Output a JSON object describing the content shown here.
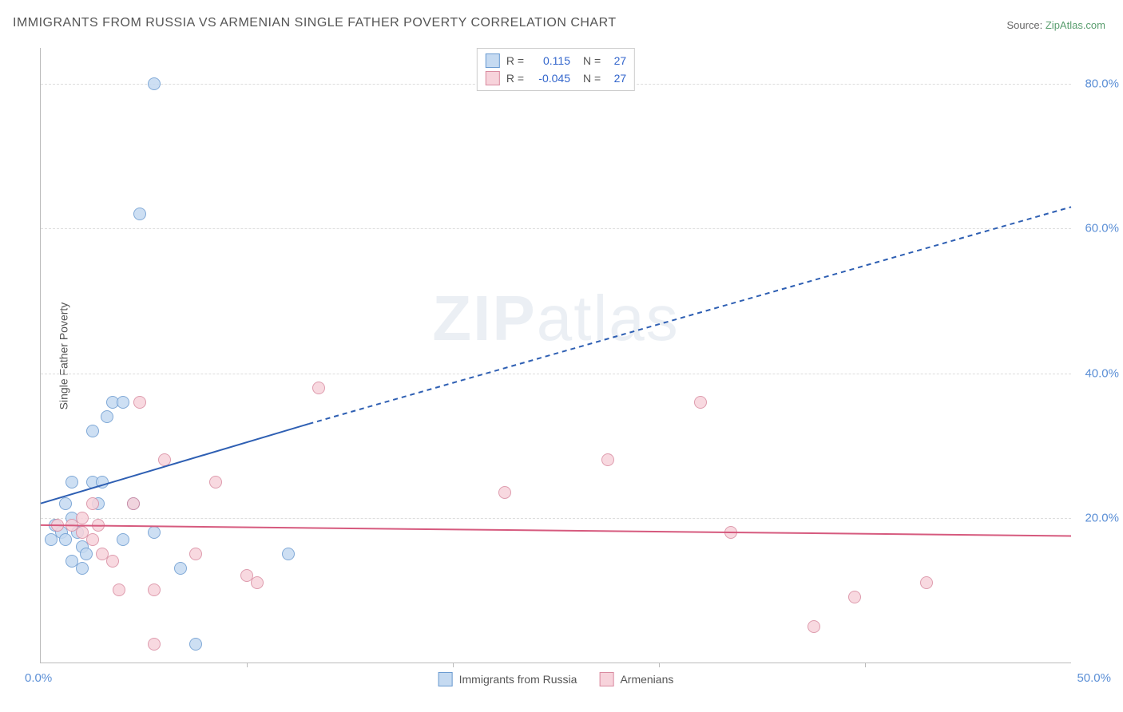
{
  "title": "IMMIGRANTS FROM RUSSIA VS ARMENIAN SINGLE FATHER POVERTY CORRELATION CHART",
  "source_prefix": "Source: ",
  "source_link": "ZipAtlas.com",
  "ylabel": "Single Father Poverty",
  "watermark": "ZIPatlas",
  "chart": {
    "type": "scatter",
    "xlim": [
      0,
      50
    ],
    "ylim": [
      0,
      85
    ],
    "x_axis_label_left": "0.0%",
    "x_axis_label_right": "50.0%",
    "y_gridlines": [
      20,
      40,
      60,
      80
    ],
    "y_tick_labels": [
      "20.0%",
      "40.0%",
      "60.0%",
      "80.0%"
    ],
    "x_ticks": [
      10,
      20,
      30,
      40
    ],
    "background_color": "#ffffff",
    "grid_color": "#dddddd",
    "axis_color": "#bbbbbb",
    "tick_label_color": "#5b8fd6",
    "marker_radius": 7,
    "series": [
      {
        "name": "Immigrants from Russia",
        "fill": "#c5daf1",
        "stroke": "#6b9bd1",
        "line_color": "#2e5fb3",
        "R": "0.115",
        "N": "27",
        "trend": {
          "x1": 0,
          "y1": 22,
          "x2": 13,
          "y2": 33,
          "dash_x2": 50,
          "dash_y2": 63
        },
        "points": [
          [
            0.5,
            17
          ],
          [
            0.7,
            19
          ],
          [
            1.0,
            18
          ],
          [
            1.2,
            17
          ],
          [
            1.2,
            22
          ],
          [
            1.5,
            20
          ],
          [
            1.5,
            14
          ],
          [
            1.8,
            18
          ],
          [
            1.5,
            25
          ],
          [
            2.0,
            16
          ],
          [
            2.2,
            15
          ],
          [
            2.5,
            25
          ],
          [
            2.8,
            22
          ],
          [
            2.5,
            32
          ],
          [
            3.0,
            25
          ],
          [
            3.2,
            34
          ],
          [
            3.5,
            36
          ],
          [
            4.0,
            36
          ],
          [
            4.0,
            17
          ],
          [
            4.5,
            22
          ],
          [
            5.5,
            18
          ],
          [
            4.8,
            62
          ],
          [
            5.5,
            80
          ],
          [
            6.8,
            13
          ],
          [
            7.5,
            2.5
          ],
          [
            12.0,
            15
          ],
          [
            2.0,
            13
          ]
        ]
      },
      {
        "name": "Armenians",
        "fill": "#f7d3db",
        "stroke": "#d98ba0",
        "line_color": "#d65a7e",
        "R": "-0.045",
        "N": "27",
        "trend": {
          "x1": 0,
          "y1": 19,
          "x2": 50,
          "y2": 17.5
        },
        "points": [
          [
            0.8,
            19
          ],
          [
            1.5,
            19
          ],
          [
            2.0,
            20
          ],
          [
            2.0,
            18
          ],
          [
            2.5,
            22
          ],
          [
            2.5,
            17
          ],
          [
            2.8,
            19
          ],
          [
            3.5,
            14
          ],
          [
            3.8,
            10
          ],
          [
            4.5,
            22
          ],
          [
            4.8,
            36
          ],
          [
            5.5,
            10
          ],
          [
            5.5,
            2.5
          ],
          [
            6.0,
            28
          ],
          [
            7.5,
            15
          ],
          [
            8.5,
            25
          ],
          [
            10.0,
            12
          ],
          [
            10.5,
            11
          ],
          [
            13.5,
            38
          ],
          [
            22.5,
            23.5
          ],
          [
            27.5,
            28
          ],
          [
            32.0,
            36
          ],
          [
            33.5,
            18
          ],
          [
            37.5,
            5
          ],
          [
            39.5,
            9
          ],
          [
            43.0,
            11
          ],
          [
            3.0,
            15
          ]
        ]
      }
    ]
  },
  "legend_top_labels": {
    "R": "R =",
    "N": "N ="
  },
  "legend_bottom": [
    {
      "label": "Immigrants from Russia",
      "fill": "#c5daf1",
      "stroke": "#6b9bd1"
    },
    {
      "label": "Armenians",
      "fill": "#f7d3db",
      "stroke": "#d98ba0"
    }
  ]
}
